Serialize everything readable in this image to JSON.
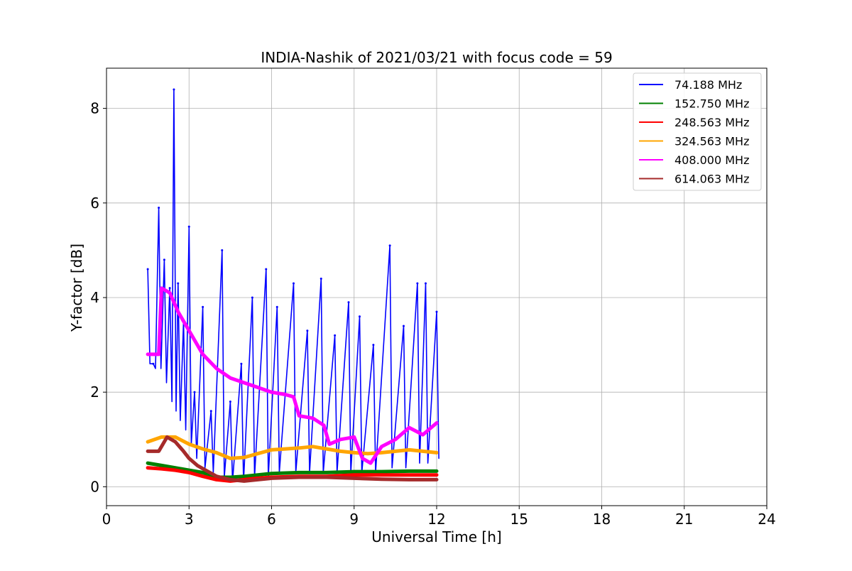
{
  "chart_data": {
    "type": "line",
    "title": "INDIA-Nashik of 2021/03/21 with focus code = 59",
    "xlabel": "Universal Time [h]",
    "ylabel": "Y-factor [dB]",
    "xlim": [
      0,
      24
    ],
    "ylim": [
      -0.4,
      8.85
    ],
    "xticks": [
      0,
      3,
      6,
      9,
      12,
      15,
      18,
      21,
      24
    ],
    "xtick_labels": [
      "0",
      "3",
      "6",
      "9",
      "12",
      "15",
      "18",
      "21",
      "24"
    ],
    "yticks": [
      0,
      2,
      4,
      6,
      8
    ],
    "ytick_labels": [
      "0",
      "2",
      "4",
      "6",
      "8"
    ],
    "grid": true,
    "legend_position": "top-right",
    "series": [
      {
        "name": " 74.188 MHz",
        "color": "#0000ff",
        "x": [
          1.5,
          1.7,
          1.9,
          2.1,
          2.3,
          2.45,
          2.6,
          2.8,
          3.0,
          3.2,
          3.5,
          3.8,
          4.2,
          4.5,
          4.9,
          5.3,
          5.8,
          6.2,
          6.8,
          7.3,
          7.8,
          8.3,
          8.8,
          9.2,
          9.7,
          10.3,
          10.8,
          11.3,
          11.6,
          12.0
        ],
        "y": [
          4.6,
          2.6,
          5.9,
          4.8,
          4.2,
          8.4,
          4.3,
          3.5,
          5.5,
          2.0,
          3.8,
          1.6,
          5.0,
          1.8,
          2.6,
          4.0,
          4.6,
          3.8,
          4.3,
          3.3,
          4.4,
          3.2,
          3.9,
          3.6,
          3.0,
          5.1,
          3.4,
          4.3,
          4.3,
          3.7
        ],
        "y_low": [
          2.6,
          2.5,
          2.5,
          2.2,
          1.8,
          1.6,
          1.4,
          1.2,
          0.9,
          0.6,
          0.4,
          0.3,
          0.2,
          0.1,
          0.1,
          0.2,
          0.2,
          0.3,
          0.3,
          0.3,
          0.3,
          0.3,
          0.3,
          0.3,
          0.3,
          0.4,
          0.4,
          0.5,
          0.5,
          0.6
        ]
      },
      {
        "name": "152.750 MHz",
        "color": "#008000",
        "x": [
          1.5,
          2.0,
          2.5,
          3.0,
          3.5,
          4.0,
          4.5,
          5.0,
          5.5,
          6.0,
          7.0,
          8.0,
          9.0,
          10.0,
          11.0,
          12.0
        ],
        "y": [
          0.5,
          0.45,
          0.4,
          0.35,
          0.3,
          0.2,
          0.2,
          0.22,
          0.25,
          0.28,
          0.3,
          0.3,
          0.32,
          0.32,
          0.33,
          0.33
        ]
      },
      {
        "name": "248.563 MHz",
        "color": "#ff0000",
        "x": [
          1.5,
          2.0,
          2.5,
          3.0,
          3.5,
          4.0,
          4.5,
          5.0,
          5.5,
          6.0,
          7.0,
          8.0,
          9.0,
          10.0,
          11.0,
          12.0
        ],
        "y": [
          0.4,
          0.38,
          0.35,
          0.3,
          0.22,
          0.15,
          0.12,
          0.15,
          0.18,
          0.2,
          0.22,
          0.22,
          0.25,
          0.25,
          0.25,
          0.25
        ]
      },
      {
        "name": "324.563 MHz",
        "color": "#ffa500",
        "x": [
          1.5,
          2.0,
          2.5,
          3.0,
          3.5,
          4.0,
          4.5,
          5.0,
          5.5,
          6.0,
          6.5,
          7.0,
          7.5,
          8.0,
          8.5,
          9.0,
          9.5,
          10.0,
          10.5,
          11.0,
          11.5,
          12.0
        ],
        "y": [
          0.95,
          1.05,
          1.05,
          0.9,
          0.8,
          0.72,
          0.6,
          0.62,
          0.7,
          0.78,
          0.8,
          0.82,
          0.85,
          0.8,
          0.75,
          0.72,
          0.7,
          0.72,
          0.75,
          0.78,
          0.75,
          0.72
        ]
      },
      {
        "name": "408.000 MHz",
        "color": "#ff00ff",
        "x": [
          1.5,
          1.9,
          2.0,
          2.3,
          2.6,
          3.0,
          3.5,
          4.0,
          4.5,
          5.0,
          5.5,
          6.0,
          6.5,
          6.8,
          7.0,
          7.5,
          7.9,
          8.1,
          8.5,
          9.0,
          9.3,
          9.6,
          10.0,
          10.5,
          11.0,
          11.5,
          12.0
        ],
        "y": [
          2.8,
          2.8,
          4.2,
          4.1,
          3.7,
          3.3,
          2.8,
          2.5,
          2.3,
          2.2,
          2.1,
          2.0,
          1.95,
          1.9,
          1.5,
          1.45,
          1.3,
          0.9,
          1.0,
          1.05,
          0.6,
          0.5,
          0.85,
          1.0,
          1.25,
          1.1,
          1.35
        ]
      },
      {
        "name": "614.063 MHz",
        "color": "#a52a2a",
        "x": [
          1.5,
          1.9,
          2.2,
          2.5,
          2.8,
          3.0,
          3.3,
          3.6,
          4.0,
          4.5,
          5.0,
          5.5,
          6.0,
          7.0,
          8.0,
          9.0,
          10.0,
          11.0,
          12.0
        ],
        "y": [
          0.75,
          0.75,
          1.05,
          0.95,
          0.75,
          0.6,
          0.45,
          0.35,
          0.22,
          0.15,
          0.12,
          0.15,
          0.18,
          0.2,
          0.2,
          0.18,
          0.16,
          0.15,
          0.15
        ]
      }
    ]
  }
}
